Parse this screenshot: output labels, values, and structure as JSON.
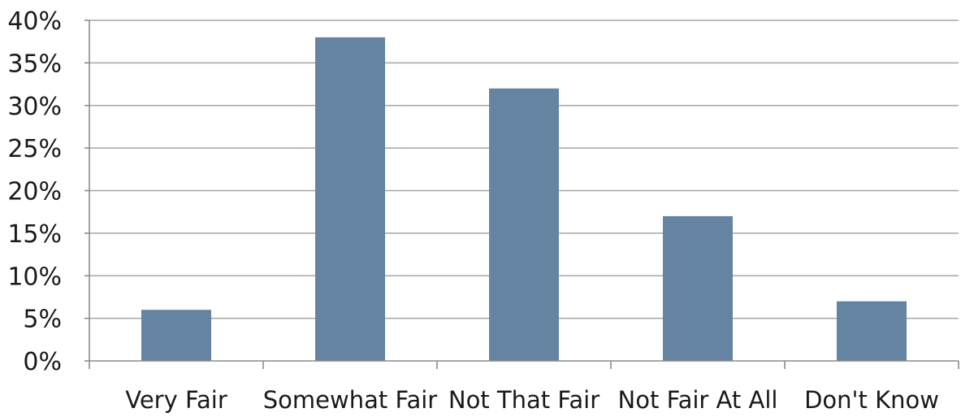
{
  "chart_data": {
    "type": "bar",
    "categories": [
      "Very Fair",
      "Somewhat Fair",
      "Not That Fair",
      "Not Fair At All",
      "Don't Know"
    ],
    "values": [
      6,
      38,
      32,
      17,
      7
    ],
    "y_ticks": [
      "0%",
      "5%",
      "10%",
      "15%",
      "20%",
      "25%",
      "30%",
      "35%",
      "40%"
    ],
    "ylim": [
      0,
      40
    ],
    "y_unit": "%",
    "grid": true,
    "legend": "none",
    "title": "",
    "xlabel": "",
    "ylabel": "",
    "colors": {
      "bar": "#6584a1",
      "grid": "#a6a6a6",
      "axis": "#8c8c8c",
      "text": "#1a1a1a"
    }
  }
}
